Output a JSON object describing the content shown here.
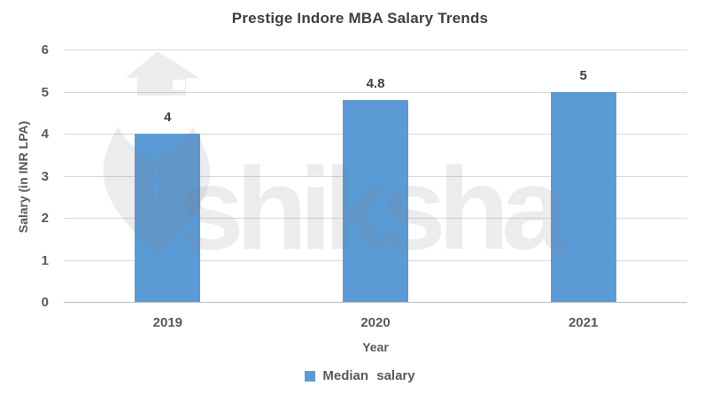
{
  "chart_data": {
    "type": "bar",
    "title": "Prestige Indore MBA Salary Trends",
    "categories": [
      "2019",
      "2020",
      "2021"
    ],
    "series": [
      {
        "name": "Median salary",
        "values": [
          4,
          4.8,
          5
        ]
      }
    ],
    "data_labels": [
      "4",
      "4.8",
      "5"
    ],
    "xlabel": "Year",
    "ylabel": "Salary (in INR LPA)",
    "ylim": [
      0,
      6
    ],
    "yticks": [
      0,
      1,
      2,
      3,
      4,
      5,
      6
    ],
    "grid": true,
    "legend_position": "bottom",
    "colors": {
      "bar": "#5B9BD5",
      "gridline": "#D9D9D9",
      "axis_line": "#BFBFBF",
      "title_text": "#3F3F3F",
      "axis_text": "#595959",
      "data_label_text": "#404040"
    }
  },
  "legend": {
    "label": "Median salary",
    "swatch_color": "#5B9BD5"
  },
  "watermark": {
    "text": "shiksha",
    "icon": "shiksha-house-pen-nib-logo"
  }
}
